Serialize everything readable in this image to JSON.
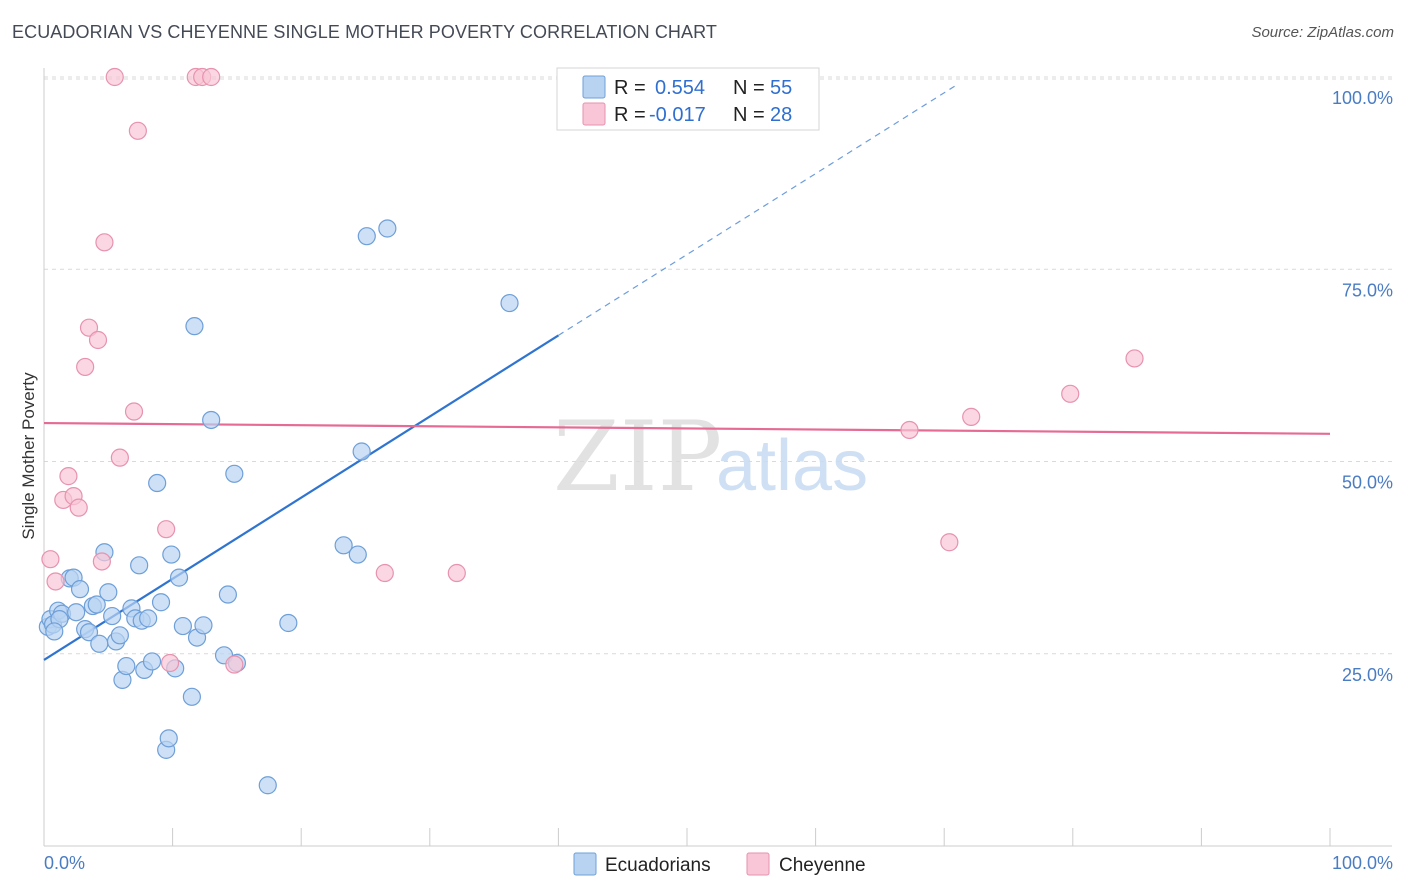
{
  "title": "ECUADORIAN VS CHEYENNE SINGLE MOTHER POVERTY CORRELATION CHART",
  "source": "Source: ZipAtlas.com",
  "watermark": {
    "zip": "ZIP",
    "atlas": "atlas"
  },
  "colors": {
    "blue_fill": "#b8d3f2",
    "blue_stroke": "#6e9fd8",
    "blue_line": "#2f74d0",
    "pink_fill": "#f8c6d6",
    "pink_stroke": "#e792ae",
    "pink_line": "#e56a94",
    "grid": "#d9d9d9",
    "axis_text": "#4a7cc4"
  },
  "legend": {
    "rows": [
      {
        "r_label": "R =",
        "r_value": "0.554",
        "n_label": "N =",
        "n_value": "55",
        "series": "Ecuadorians"
      },
      {
        "r_label": "R =",
        "r_value": "-0.017",
        "n_label": "N =",
        "n_value": "28",
        "series": "Cheyenne"
      }
    ]
  },
  "chart_data": {
    "type": "scatter",
    "title": "ECUADORIAN VS CHEYENNE SINGLE MOTHER POVERTY CORRELATION CHART",
    "xlabel": "",
    "ylabel": "Single Mother Poverty",
    "xlim": [
      0,
      100
    ],
    "ylim": [
      0,
      102
    ],
    "x_tick_labels": [
      "0.0%",
      "100.0%"
    ],
    "y_ticks": [
      25,
      50,
      75,
      100
    ],
    "y_tick_labels": [
      "25.0%",
      "50.0%",
      "75.0%",
      "100.0%"
    ],
    "grid": true,
    "legend_position": "bottom-center",
    "series": [
      {
        "name": "Ecuadorians",
        "color": "#6e9fd8",
        "trend": {
          "x_start": 0,
          "y_start": 24.2,
          "x_end": 40,
          "y_end": 66.4,
          "dashed_to_x": 71,
          "dashed_to_y": 99
        },
        "points": [
          [
            0.3,
            28.5
          ],
          [
            0.5,
            29.5
          ],
          [
            0.7,
            28.8
          ],
          [
            1.1,
            30.6
          ],
          [
            1.4,
            30.2
          ],
          [
            2.0,
            34.8
          ],
          [
            2.3,
            34.9
          ],
          [
            2.5,
            30.4
          ],
          [
            2.8,
            33.4
          ],
          [
            3.2,
            28.2
          ],
          [
            3.5,
            27.8
          ],
          [
            3.8,
            31.2
          ],
          [
            4.1,
            31.4
          ],
          [
            4.3,
            26.3
          ],
          [
            4.7,
            38.2
          ],
          [
            5.0,
            33.0
          ],
          [
            5.3,
            29.9
          ],
          [
            5.6,
            26.6
          ],
          [
            5.9,
            27.4
          ],
          [
            6.1,
            21.6
          ],
          [
            6.4,
            23.4
          ],
          [
            6.8,
            30.9
          ],
          [
            7.1,
            29.6
          ],
          [
            7.4,
            36.5
          ],
          [
            7.6,
            29.3
          ],
          [
            7.8,
            22.9
          ],
          [
            8.1,
            29.6
          ],
          [
            8.4,
            24.0
          ],
          [
            8.8,
            47.2
          ],
          [
            9.1,
            31.7
          ],
          [
            9.5,
            12.5
          ],
          [
            9.7,
            14.0
          ],
          [
            9.9,
            37.9
          ],
          [
            10.2,
            23.1
          ],
          [
            10.5,
            34.9
          ],
          [
            10.8,
            28.6
          ],
          [
            11.5,
            19.4
          ],
          [
            11.7,
            67.6
          ],
          [
            11.9,
            27.1
          ],
          [
            12.4,
            28.7
          ],
          [
            13.0,
            55.4
          ],
          [
            14.0,
            24.8
          ],
          [
            14.3,
            32.7
          ],
          [
            14.8,
            48.4
          ],
          [
            15.0,
            23.8
          ],
          [
            17.4,
            7.9
          ],
          [
            19.0,
            29.0
          ],
          [
            23.3,
            39.1
          ],
          [
            24.4,
            37.9
          ],
          [
            24.7,
            51.3
          ],
          [
            25.1,
            79.3
          ],
          [
            26.7,
            80.3
          ],
          [
            36.2,
            70.6
          ],
          [
            1.2,
            29.5
          ],
          [
            0.8,
            27.9
          ]
        ]
      },
      {
        "name": "Cheyenne",
        "color": "#e792ae",
        "trend": {
          "x_start": 0,
          "y_start": 55.0,
          "x_end": 100,
          "y_end": 53.6
        },
        "points": [
          [
            0.5,
            37.3
          ],
          [
            0.9,
            34.4
          ],
          [
            1.5,
            45.0
          ],
          [
            1.9,
            48.1
          ],
          [
            2.3,
            45.5
          ],
          [
            2.7,
            44.0
          ],
          [
            3.2,
            62.3
          ],
          [
            3.5,
            67.4
          ],
          [
            4.2,
            65.8
          ],
          [
            4.5,
            37.0
          ],
          [
            4.7,
            78.5
          ],
          [
            5.5,
            100.0
          ],
          [
            5.9,
            50.5
          ],
          [
            7.0,
            56.5
          ],
          [
            7.3,
            93.0
          ],
          [
            9.5,
            41.2
          ],
          [
            9.8,
            23.8
          ],
          [
            11.8,
            100.0
          ],
          [
            12.3,
            100.0
          ],
          [
            13.0,
            100.0
          ],
          [
            14.8,
            23.6
          ],
          [
            26.5,
            35.5
          ],
          [
            32.1,
            35.5
          ],
          [
            67.3,
            54.1
          ],
          [
            70.4,
            39.5
          ],
          [
            72.1,
            55.8
          ],
          [
            79.8,
            58.8
          ],
          [
            84.8,
            63.4
          ]
        ]
      }
    ]
  }
}
